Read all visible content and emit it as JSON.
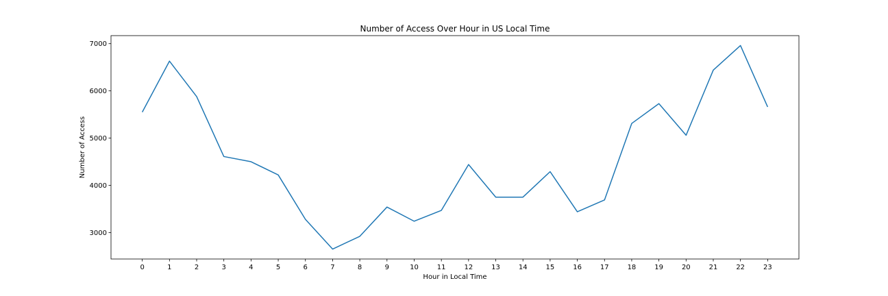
{
  "chart_data": {
    "type": "line",
    "title": "Number of Access Over Hour in US Local Time",
    "xlabel": "Hour in Local Time",
    "ylabel": "Number of Access",
    "x": [
      0,
      1,
      2,
      3,
      4,
      5,
      6,
      7,
      8,
      9,
      10,
      11,
      12,
      13,
      14,
      15,
      16,
      17,
      18,
      19,
      20,
      21,
      22,
      23
    ],
    "x_ticks": [
      "0",
      "1",
      "2",
      "3",
      "4",
      "5",
      "6",
      "7",
      "8",
      "9",
      "10",
      "11",
      "12",
      "13",
      "14",
      "15",
      "16",
      "17",
      "18",
      "19",
      "20",
      "21",
      "22",
      "23"
    ],
    "xlim": [
      -1.15,
      24.15
    ],
    "ylim": [
      2440,
      7170
    ],
    "y_ticks": [
      3000,
      4000,
      5000,
      6000,
      7000
    ],
    "grid": false,
    "series": [
      {
        "color": "#1f77b4",
        "values": [
          5550,
          6630,
          5880,
          4610,
          4500,
          4220,
          3280,
          2650,
          2920,
          3540,
          3240,
          3470,
          4440,
          3750,
          3750,
          4290,
          3440,
          3690,
          5310,
          5730,
          5060,
          6440,
          6960,
          5660
        ]
      }
    ]
  }
}
